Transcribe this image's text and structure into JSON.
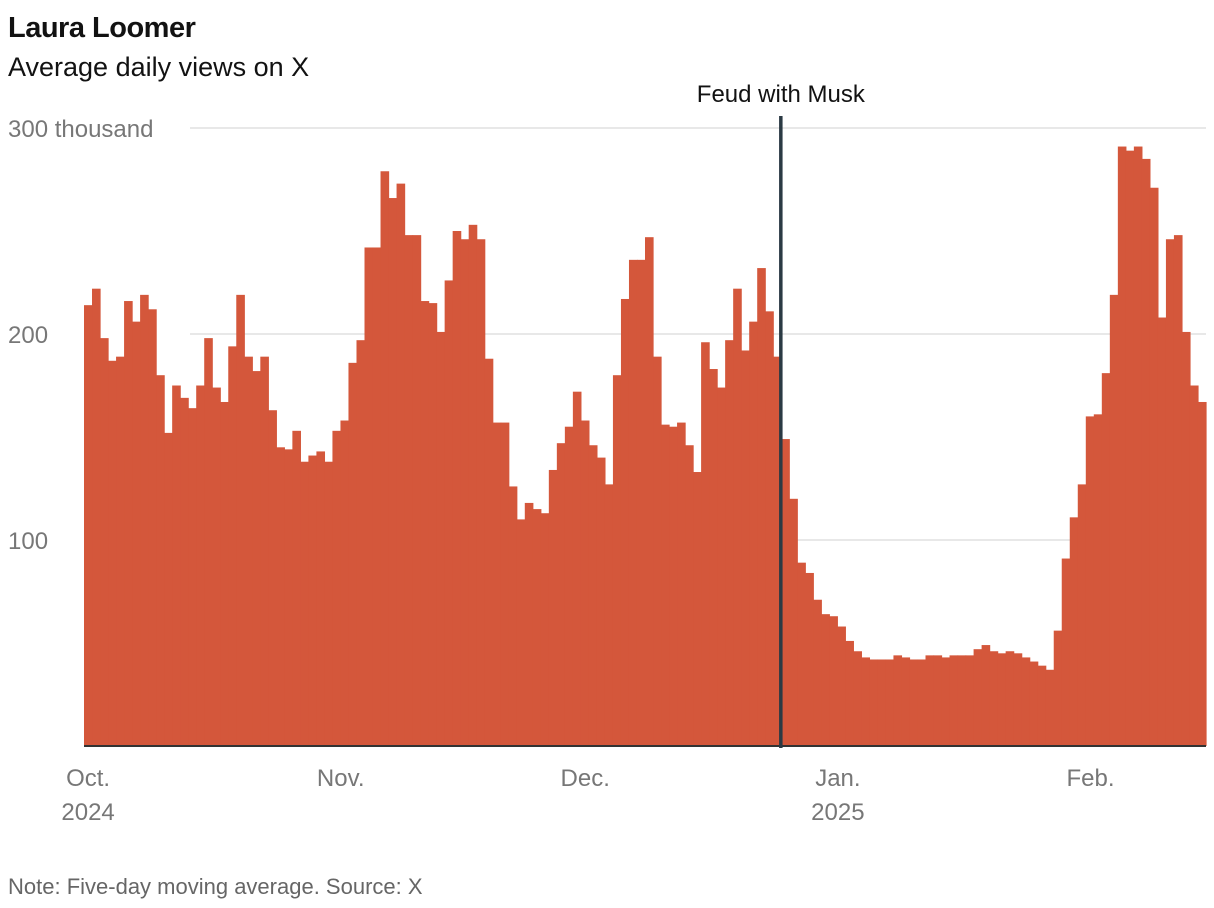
{
  "header": {
    "title": "Laura Loomer",
    "subtitle": "Average daily views on X"
  },
  "footer": {
    "note": "Note: Five-day moving average. Source: X"
  },
  "chart_data": {
    "type": "bar",
    "title": "Laura Loomer",
    "subtitle": "Average daily views on X",
    "xlabel": "",
    "ylabel": "",
    "ylim": [
      0,
      300
    ],
    "y_unit": "thousand",
    "y_ticks": [
      {
        "value": 100,
        "label": "100"
      },
      {
        "value": 200,
        "label": "200"
      },
      {
        "value": 300,
        "label": "300 thousand"
      }
    ],
    "x_ticks": [
      {
        "date": "2024-10-01",
        "month": "Oct.",
        "year": "2024"
      },
      {
        "date": "2024-11-01",
        "month": "Nov.",
        "year": ""
      },
      {
        "date": "2024-12-01",
        "month": "Dec.",
        "year": ""
      },
      {
        "date": "2025-01-01",
        "month": "Jan.",
        "year": "2025"
      },
      {
        "date": "2025-02-01",
        "month": "Feb.",
        "year": ""
      }
    ],
    "x_range": [
      "2024-10-01",
      "2025-02-14"
    ],
    "start_date": "2024-10-01",
    "grid": "horizontal",
    "colors": {
      "bars": "#d4573b",
      "grid": "#e0e0e0",
      "annotation": "#2b3a44",
      "axis": "#333333"
    },
    "annotation": {
      "date": "2024-12-25",
      "label": "Feud with Musk"
    },
    "values": [
      214,
      222,
      198,
      187,
      189,
      216,
      206,
      219,
      212,
      180,
      152,
      175,
      169,
      164,
      175,
      198,
      174,
      167,
      194,
      219,
      189,
      182,
      189,
      163,
      145,
      144,
      153,
      138,
      141,
      143,
      138,
      153,
      158,
      186,
      197,
      242,
      242,
      279,
      266,
      273,
      248,
      248,
      216,
      215,
      201,
      226,
      250,
      246,
      253,
      246,
      188,
      157,
      157,
      126,
      110,
      118,
      115,
      113,
      134,
      147,
      155,
      172,
      158,
      146,
      140,
      127,
      180,
      217,
      236,
      236,
      247,
      189,
      156,
      155,
      157,
      146,
      133,
      196,
      183,
      174,
      197,
      222,
      192,
      206,
      232,
      211,
      189,
      149,
      120,
      89,
      84,
      71,
      64,
      63,
      58,
      51,
      46,
      43,
      42,
      42,
      42,
      44,
      43,
      42,
      42,
      44,
      44,
      43,
      44,
      44,
      44,
      47,
      49,
      46,
      45,
      46,
      45,
      43,
      41,
      39,
      37,
      56,
      91,
      111,
      127,
      160,
      161,
      181,
      219,
      291,
      289,
      291,
      285,
      271,
      208,
      246,
      248,
      201,
      175,
      167
    ]
  }
}
